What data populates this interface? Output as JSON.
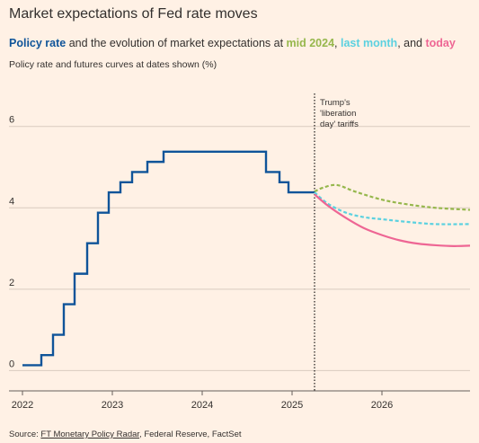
{
  "title": "Market expectations of Fed rate moves",
  "subtitle": {
    "part1": "Policy rate",
    "part2": " and the evolution of market expectations at ",
    "part3": "mid 2024",
    "part4": ", ",
    "part5": "last month",
    "part6": ", and ",
    "part7": "today"
  },
  "axis_note": "Policy rate and futures curves at dates shown (%)",
  "source": {
    "prefix": "Source: ",
    "link": "FT Monetary Policy Radar",
    "rest": ", Federal Reserve, FactSet"
  },
  "colors": {
    "background": "#fff1e5",
    "policy_rate": "#0f5499",
    "mid_2024": "#96b74c",
    "last_month": "#5bd1e0",
    "today": "#ee6694",
    "grid": "#d9cbbf",
    "text": "#33302e"
  },
  "chart_data": {
    "type": "line",
    "xlabel": "",
    "ylabel": "",
    "xlim": [
      2022.0,
      2026.98
    ],
    "ylim": [
      -0.5,
      6.9
    ],
    "x_ticks": [
      2022,
      2023,
      2024,
      2025,
      2026
    ],
    "x_tick_labels": [
      "2022",
      "2023",
      "2024",
      "2025",
      "2026"
    ],
    "y_ticks": [
      0,
      2,
      4,
      6
    ],
    "y_tick_labels": [
      "0",
      "2",
      "4",
      "6"
    ],
    "grid": "horizontal",
    "annotation": {
      "x": 2025.25,
      "lines": [
        "Trump's",
        "'liberation",
        "day' tariffs"
      ]
    },
    "series": [
      {
        "name": "Policy rate",
        "color_key": "policy_rate",
        "style": "step",
        "x": [
          2022.0,
          2022.21,
          2022.34,
          2022.46,
          2022.58,
          2022.72,
          2022.84,
          2022.96,
          2023.09,
          2023.22,
          2023.39,
          2023.57,
          2024.71,
          2024.86,
          2024.96,
          2025.25
        ],
        "y": [
          0.13,
          0.38,
          0.88,
          1.63,
          2.38,
          3.13,
          3.88,
          4.38,
          4.63,
          4.88,
          5.13,
          5.38,
          4.88,
          4.63,
          4.38,
          4.38
        ]
      },
      {
        "name": "mid 2024",
        "color_key": "mid_2024",
        "style": "dashed",
        "x": [
          2025.25,
          2025.35,
          2025.5,
          2025.7,
          2026.0,
          2026.3,
          2026.6,
          2026.98
        ],
        "y": [
          4.4,
          4.5,
          4.56,
          4.4,
          4.2,
          4.08,
          4.0,
          3.95
        ]
      },
      {
        "name": "last month",
        "color_key": "last_month",
        "style": "dashed",
        "x": [
          2025.25,
          2025.4,
          2025.6,
          2025.8,
          2026.0,
          2026.3,
          2026.6,
          2026.98
        ],
        "y": [
          4.38,
          4.1,
          3.88,
          3.77,
          3.72,
          3.65,
          3.6,
          3.6
        ]
      },
      {
        "name": "today",
        "color_key": "today",
        "style": "solid",
        "x": [
          2025.25,
          2025.4,
          2025.6,
          2025.8,
          2026.0,
          2026.2,
          2026.4,
          2026.6,
          2026.8,
          2026.98
        ],
        "y": [
          4.33,
          4.05,
          3.75,
          3.5,
          3.33,
          3.2,
          3.12,
          3.08,
          3.06,
          3.07
        ]
      }
    ]
  }
}
